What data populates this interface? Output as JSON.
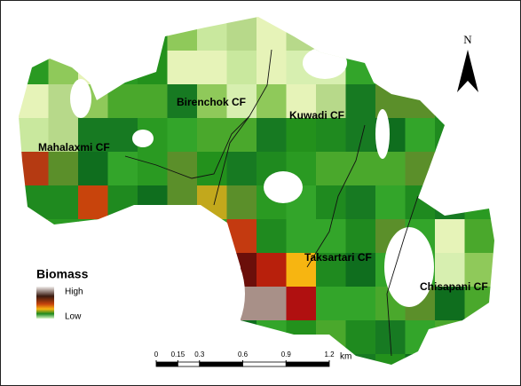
{
  "map": {
    "labels": [
      "Birenchok CF",
      "Kuwadi CF",
      "Mahalaxmi CF",
      "Taksartari CF",
      "Chisapani CF"
    ],
    "north": "N",
    "legend": {
      "title": "Biomass",
      "high": "High",
      "low": "Low"
    },
    "scale_bar": {
      "ticks": [
        0,
        0.15,
        0.3,
        0.6,
        0.9,
        1.2
      ],
      "unit": "km"
    }
  }
}
